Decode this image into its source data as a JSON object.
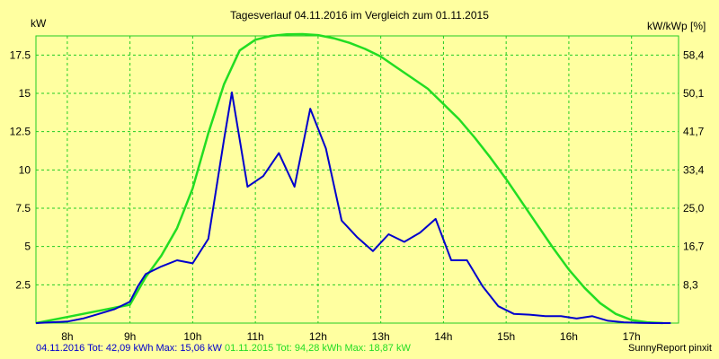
{
  "title": "Tagesverlauf 04.11.2016 im Vergleich zum 01.11.2015",
  "left_axis_unit": "kW",
  "right_axis_unit": "kW/kWp [%]",
  "footer_series1": "04.11.2016 Tot: 42,09 kWh Max: 15,06 kW",
  "footer_series2": "01.11.2015 Tot: 94,28 kWh Max: 18,87 kW",
  "footer_brand": "SunnyReport pinxit",
  "colors": {
    "background": "#ffffa0",
    "grid": "#22cc22",
    "series1": "#0000cc",
    "series2": "#22dd22"
  },
  "chart_data": {
    "type": "line",
    "xlim": [
      7.5,
      17.75
    ],
    "ylim": [
      0,
      18.75
    ],
    "grid": true,
    "x_ticks": [
      {
        "v": 8,
        "label": "8h"
      },
      {
        "v": 9,
        "label": "9h"
      },
      {
        "v": 10,
        "label": "10h"
      },
      {
        "v": 11,
        "label": "11h"
      },
      {
        "v": 12,
        "label": "12h"
      },
      {
        "v": 13,
        "label": "13h"
      },
      {
        "v": 14,
        "label": "14h"
      },
      {
        "v": 15,
        "label": "15h"
      },
      {
        "v": 16,
        "label": "16h"
      },
      {
        "v": 17,
        "label": "17h"
      }
    ],
    "y_ticks_left": [
      {
        "v": 2.5,
        "label": "2.5"
      },
      {
        "v": 5,
        "label": "5"
      },
      {
        "v": 7.5,
        "label": "7.5"
      },
      {
        "v": 10,
        "label": "10"
      },
      {
        "v": 12.5,
        "label": "12.5"
      },
      {
        "v": 15,
        "label": "15"
      },
      {
        "v": 17.5,
        "label": "17.5"
      }
    ],
    "y_ticks_right": [
      {
        "v": 2.5,
        "label": "8,3"
      },
      {
        "v": 5,
        "label": "16,7"
      },
      {
        "v": 7.5,
        "label": "25,0"
      },
      {
        "v": 10,
        "label": "33,4"
      },
      {
        "v": 12.5,
        "label": "41,7"
      },
      {
        "v": 15,
        "label": "50,1"
      },
      {
        "v": 17.5,
        "label": "58,4"
      }
    ],
    "series": [
      {
        "name": "04.11.2016",
        "x": [
          7.5,
          7.75,
          8.0,
          8.25,
          8.5,
          8.75,
          9.0,
          9.125,
          9.25,
          9.5,
          9.75,
          10.0,
          10.25,
          10.5,
          10.625,
          10.875,
          11.125,
          11.375,
          11.625,
          11.875,
          12.125,
          12.375,
          12.625,
          12.875,
          13.125,
          13.375,
          13.625,
          13.875,
          14.125,
          14.375,
          14.625,
          14.875,
          15.125,
          15.375,
          15.625,
          15.875,
          16.125,
          16.375,
          16.625,
          16.875,
          17.125,
          17.375,
          17.625
        ],
        "y": [
          0,
          0.05,
          0.1,
          0.3,
          0.6,
          0.9,
          1.4,
          2.4,
          3.2,
          3.7,
          4.1,
          3.9,
          5.5,
          12.0,
          15.06,
          8.9,
          9.6,
          11.1,
          8.9,
          14.0,
          11.4,
          6.7,
          5.6,
          4.7,
          5.8,
          5.3,
          5.9,
          6.8,
          4.1,
          4.1,
          2.4,
          1.1,
          0.6,
          0.55,
          0.45,
          0.45,
          0.3,
          0.45,
          0.15,
          0.05,
          0.02,
          0,
          0
        ]
      },
      {
        "name": "01.11.2015",
        "x": [
          7.5,
          8.0,
          8.5,
          9.0,
          9.25,
          9.5,
          9.75,
          10.0,
          10.25,
          10.5,
          10.75,
          11.0,
          11.25,
          11.5,
          11.75,
          12.0,
          12.25,
          12.5,
          12.75,
          13.0,
          13.25,
          13.5,
          13.75,
          14.0,
          14.25,
          14.5,
          14.75,
          15.0,
          15.25,
          15.5,
          15.75,
          16.0,
          16.25,
          16.5,
          16.75,
          17.0,
          17.25,
          17.5
        ],
        "y": [
          0,
          0.4,
          0.8,
          1.2,
          3.0,
          4.4,
          6.2,
          8.8,
          12.4,
          15.6,
          17.8,
          18.5,
          18.75,
          18.85,
          18.87,
          18.8,
          18.6,
          18.3,
          17.9,
          17.4,
          16.7,
          16.0,
          15.3,
          14.3,
          13.3,
          12.1,
          10.8,
          9.4,
          7.9,
          6.4,
          4.9,
          3.5,
          2.3,
          1.3,
          0.6,
          0.2,
          0.05,
          0
        ]
      }
    ]
  }
}
